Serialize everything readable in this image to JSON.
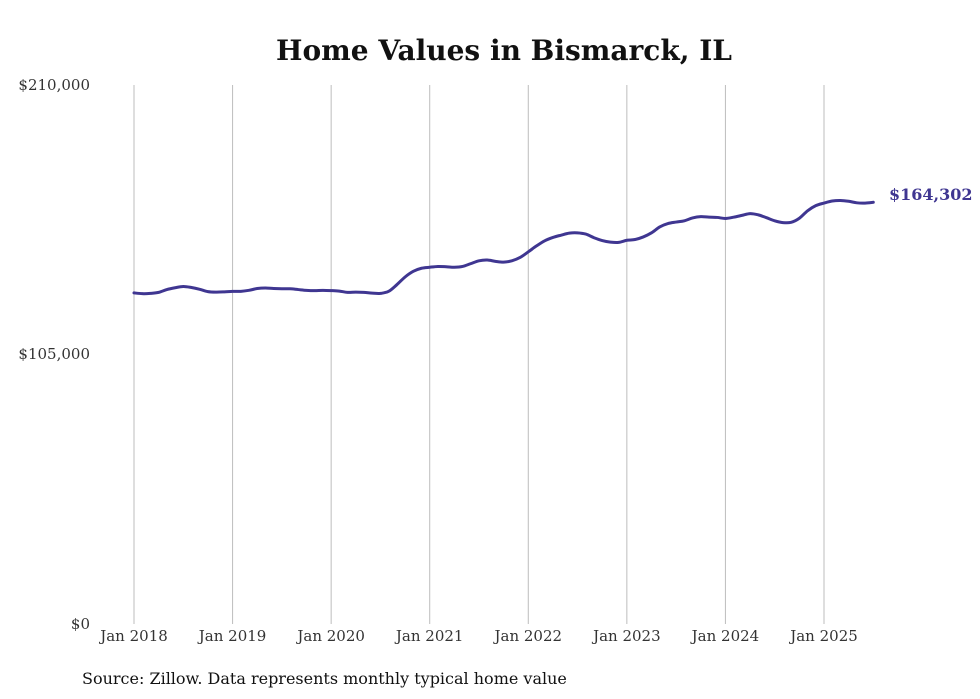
{
  "chart_data": {
    "type": "line",
    "title": "Home Values in Bismarck, IL",
    "source": "Source: Zillow. Data represents monthly typical home value",
    "ylim": [
      0,
      210000
    ],
    "y_ticks": [
      0,
      105000,
      210000
    ],
    "y_tick_labels": [
      "$0",
      "$105,000",
      "$210,000"
    ],
    "x_ticks": [
      "2018-01",
      "2019-01",
      "2020-01",
      "2021-01",
      "2022-01",
      "2023-01",
      "2024-01",
      "2025-01"
    ],
    "x_tick_labels": [
      "Jan 2018",
      "Jan 2019",
      "Jan 2020",
      "Jan 2021",
      "Jan 2022",
      "Jan 2023",
      "Jan 2024",
      "Jan 2025"
    ],
    "grid": "vertical",
    "end_label": "$164,302",
    "colors": {
      "line": "#3f3691",
      "grid": "#bdbdbd"
    },
    "series": [
      {
        "x": [
          "2018-01",
          "2018-02",
          "2018-03",
          "2018-04",
          "2018-05",
          "2018-06",
          "2018-07",
          "2018-08",
          "2018-09",
          "2018-10",
          "2018-11",
          "2018-12",
          "2019-01",
          "2019-02",
          "2019-03",
          "2019-04",
          "2019-05",
          "2019-06",
          "2019-07",
          "2019-08",
          "2019-09",
          "2019-10",
          "2019-11",
          "2019-12",
          "2020-01",
          "2020-02",
          "2020-03",
          "2020-04",
          "2020-05",
          "2020-06",
          "2020-07",
          "2020-08",
          "2020-09",
          "2020-10",
          "2020-11",
          "2020-12",
          "2021-01",
          "2021-02",
          "2021-03",
          "2021-04",
          "2021-05",
          "2021-06",
          "2021-07",
          "2021-08",
          "2021-09",
          "2021-10",
          "2021-11",
          "2021-12",
          "2022-01",
          "2022-02",
          "2022-03",
          "2022-04",
          "2022-05",
          "2022-06",
          "2022-07",
          "2022-08",
          "2022-09",
          "2022-10",
          "2022-11",
          "2022-12",
          "2023-01",
          "2023-02",
          "2023-03",
          "2023-04",
          "2023-05",
          "2023-06",
          "2023-07",
          "2023-08",
          "2023-09",
          "2023-10",
          "2023-11",
          "2023-12",
          "2024-01",
          "2024-02",
          "2024-03",
          "2024-04",
          "2024-05",
          "2024-06",
          "2024-07",
          "2024-08",
          "2024-09",
          "2024-10",
          "2024-11",
          "2024-12",
          "2025-01",
          "2025-02",
          "2025-03",
          "2025-04",
          "2025-05",
          "2025-06",
          "2025-07"
        ],
        "values": [
          129000,
          128700,
          128800,
          129200,
          130300,
          131000,
          131500,
          131100,
          130400,
          129500,
          129300,
          129400,
          129600,
          129600,
          130000,
          130700,
          130900,
          130700,
          130600,
          130600,
          130300,
          130000,
          129900,
          130000,
          129900,
          129700,
          129200,
          129300,
          129200,
          128900,
          128800,
          129600,
          132200,
          135200,
          137400,
          138600,
          139000,
          139300,
          139200,
          139000,
          139300,
          140400,
          141500,
          141800,
          141300,
          141000,
          141500,
          142800,
          145000,
          147300,
          149300,
          150600,
          151500,
          152300,
          152400,
          151900,
          150500,
          149400,
          148800,
          148700,
          149500,
          149800,
          150800,
          152400,
          154700,
          156000,
          156600,
          157100,
          158200,
          158700,
          158500,
          158400,
          158000,
          158500,
          159200,
          159900,
          159400,
          158300,
          157100,
          156400,
          156500,
          158100,
          161000,
          163000,
          164000,
          164800,
          165000,
          164700,
          164100,
          164000,
          164302
        ]
      }
    ]
  }
}
